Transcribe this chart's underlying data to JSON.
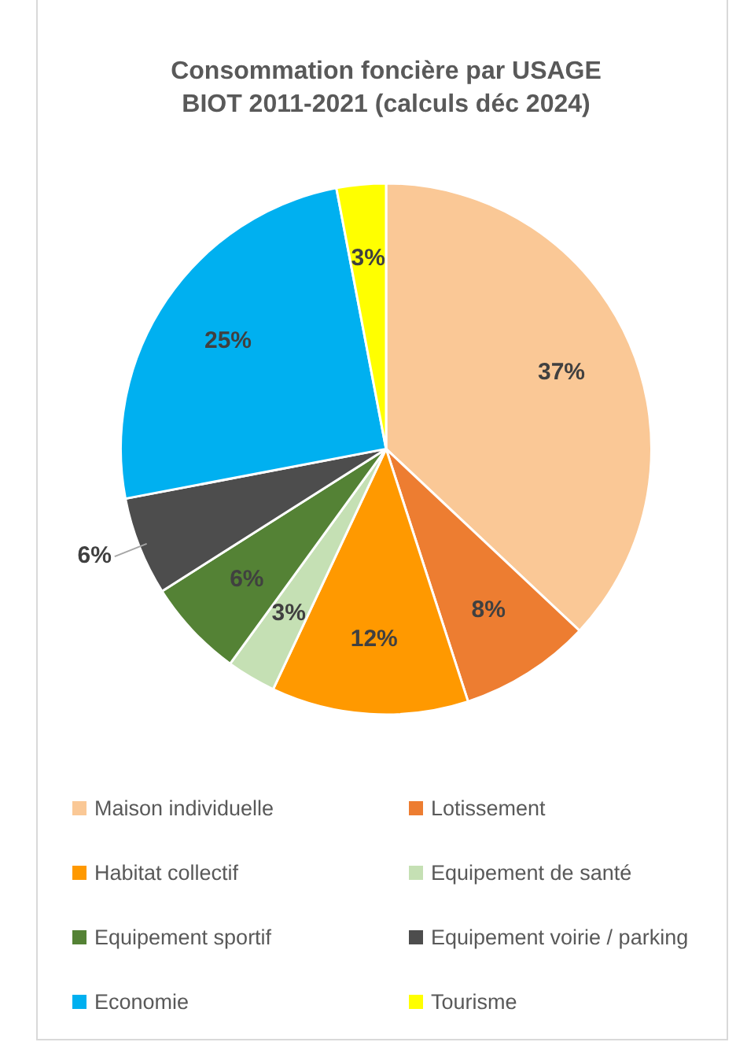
{
  "chart_data": {
    "type": "pie",
    "title": "Consommation foncière par USAGE",
    "subtitle": "BIOT 2011-2021 (calculs déc 2024)",
    "categories": [
      "Maison individuelle",
      "Lotissement",
      "Habitat collectif",
      "Equipement de santé",
      "Equipement sportif",
      "Equipement voirie / parking",
      "Economie",
      "Tourisme"
    ],
    "values": [
      37,
      8,
      12,
      3,
      6,
      6,
      25,
      3
    ],
    "colors": [
      "#fac896",
      "#ed7d31",
      "#ff9900",
      "#c5e0b4",
      "#548235",
      "#4d4d4d",
      "#00b0f0",
      "#ffff00"
    ],
    "value_labels": [
      "37%",
      "8%",
      "12%",
      "3%",
      "6%",
      "6%",
      "25%",
      "3%"
    ],
    "legend": "bottom"
  }
}
